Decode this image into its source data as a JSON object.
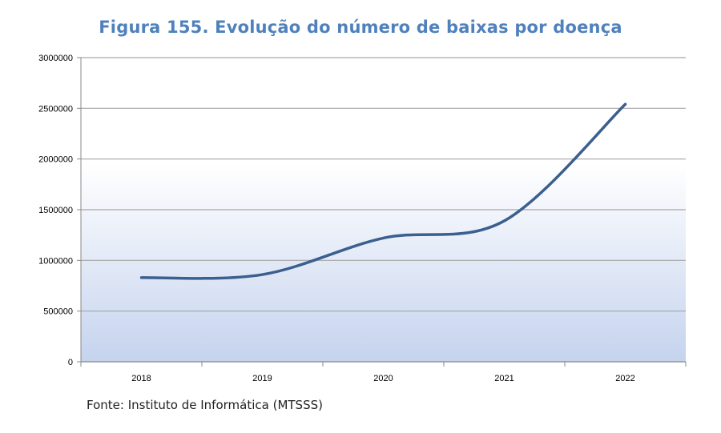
{
  "title": "Figura 155. Evolução do número de baixas por doença",
  "source": "Fonte: Instituto de Informática (MTSSS)",
  "colors": {
    "title": "#4f81bd",
    "line": "#3b5f8f",
    "plot_gradient_top": "#ffffff",
    "plot_gradient_bottom": "#c5d3ee",
    "gridline": "#a6a6a6"
  },
  "chart_data": {
    "type": "line",
    "title": "Figura 155. Evolução do número de baixas por doença",
    "xlabel": "",
    "ylabel": "",
    "categories": [
      "2018",
      "2019",
      "2020",
      "2021",
      "2022"
    ],
    "series": [
      {
        "values": [
          830000,
          860000,
          1220000,
          1390000,
          2540000
        ]
      }
    ],
    "ylim": [
      0,
      3000000
    ],
    "yticks": [
      0,
      500000,
      1000000,
      1500000,
      2000000,
      2500000,
      3000000
    ],
    "ytick_labels": [
      "0",
      "500000",
      "1000000",
      "1500000",
      "2000000",
      "2500000",
      "3000000"
    ],
    "grid": true,
    "legend": "none",
    "smooth": true
  }
}
